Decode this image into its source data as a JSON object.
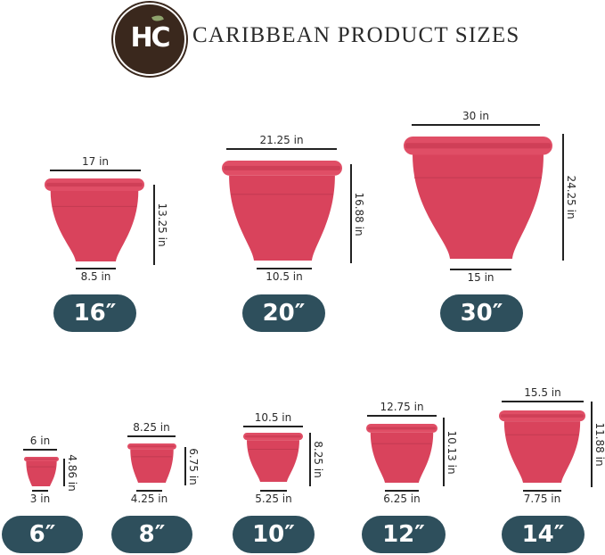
{
  "header": {
    "logo_text": "HC",
    "title": "CARIBBEAN PRODUCT SIZES"
  },
  "colors": {
    "pot": "#d9435c",
    "pill": "#2e4f5c",
    "logo": "#3a281d"
  },
  "pots": [
    {
      "size": "16″",
      "top_width": "17 in",
      "height": "13.25 in",
      "bottom_width": "8.5 in"
    },
    {
      "size": "20″",
      "top_width": "21.25 in",
      "height": "16.88 in",
      "bottom_width": "10.5 in"
    },
    {
      "size": "30″",
      "top_width": "30 in",
      "height": "24.25 in",
      "bottom_width": "15 in"
    },
    {
      "size": "6″",
      "top_width": "6 in",
      "height": "4.86 in",
      "bottom_width": "3 in"
    },
    {
      "size": "8″",
      "top_width": "8.25 in",
      "height": "6.75 in",
      "bottom_width": "4.25 in"
    },
    {
      "size": "10″",
      "top_width": "10.5 in",
      "height": "8.25 in",
      "bottom_width": "5.25 in"
    },
    {
      "size": "12″",
      "top_width": "12.75 in",
      "height": "10.13 in",
      "bottom_width": "6.25 in"
    },
    {
      "size": "14″",
      "top_width": "15.5 in",
      "height": "11.88 in",
      "bottom_width": "7.75 in"
    }
  ]
}
